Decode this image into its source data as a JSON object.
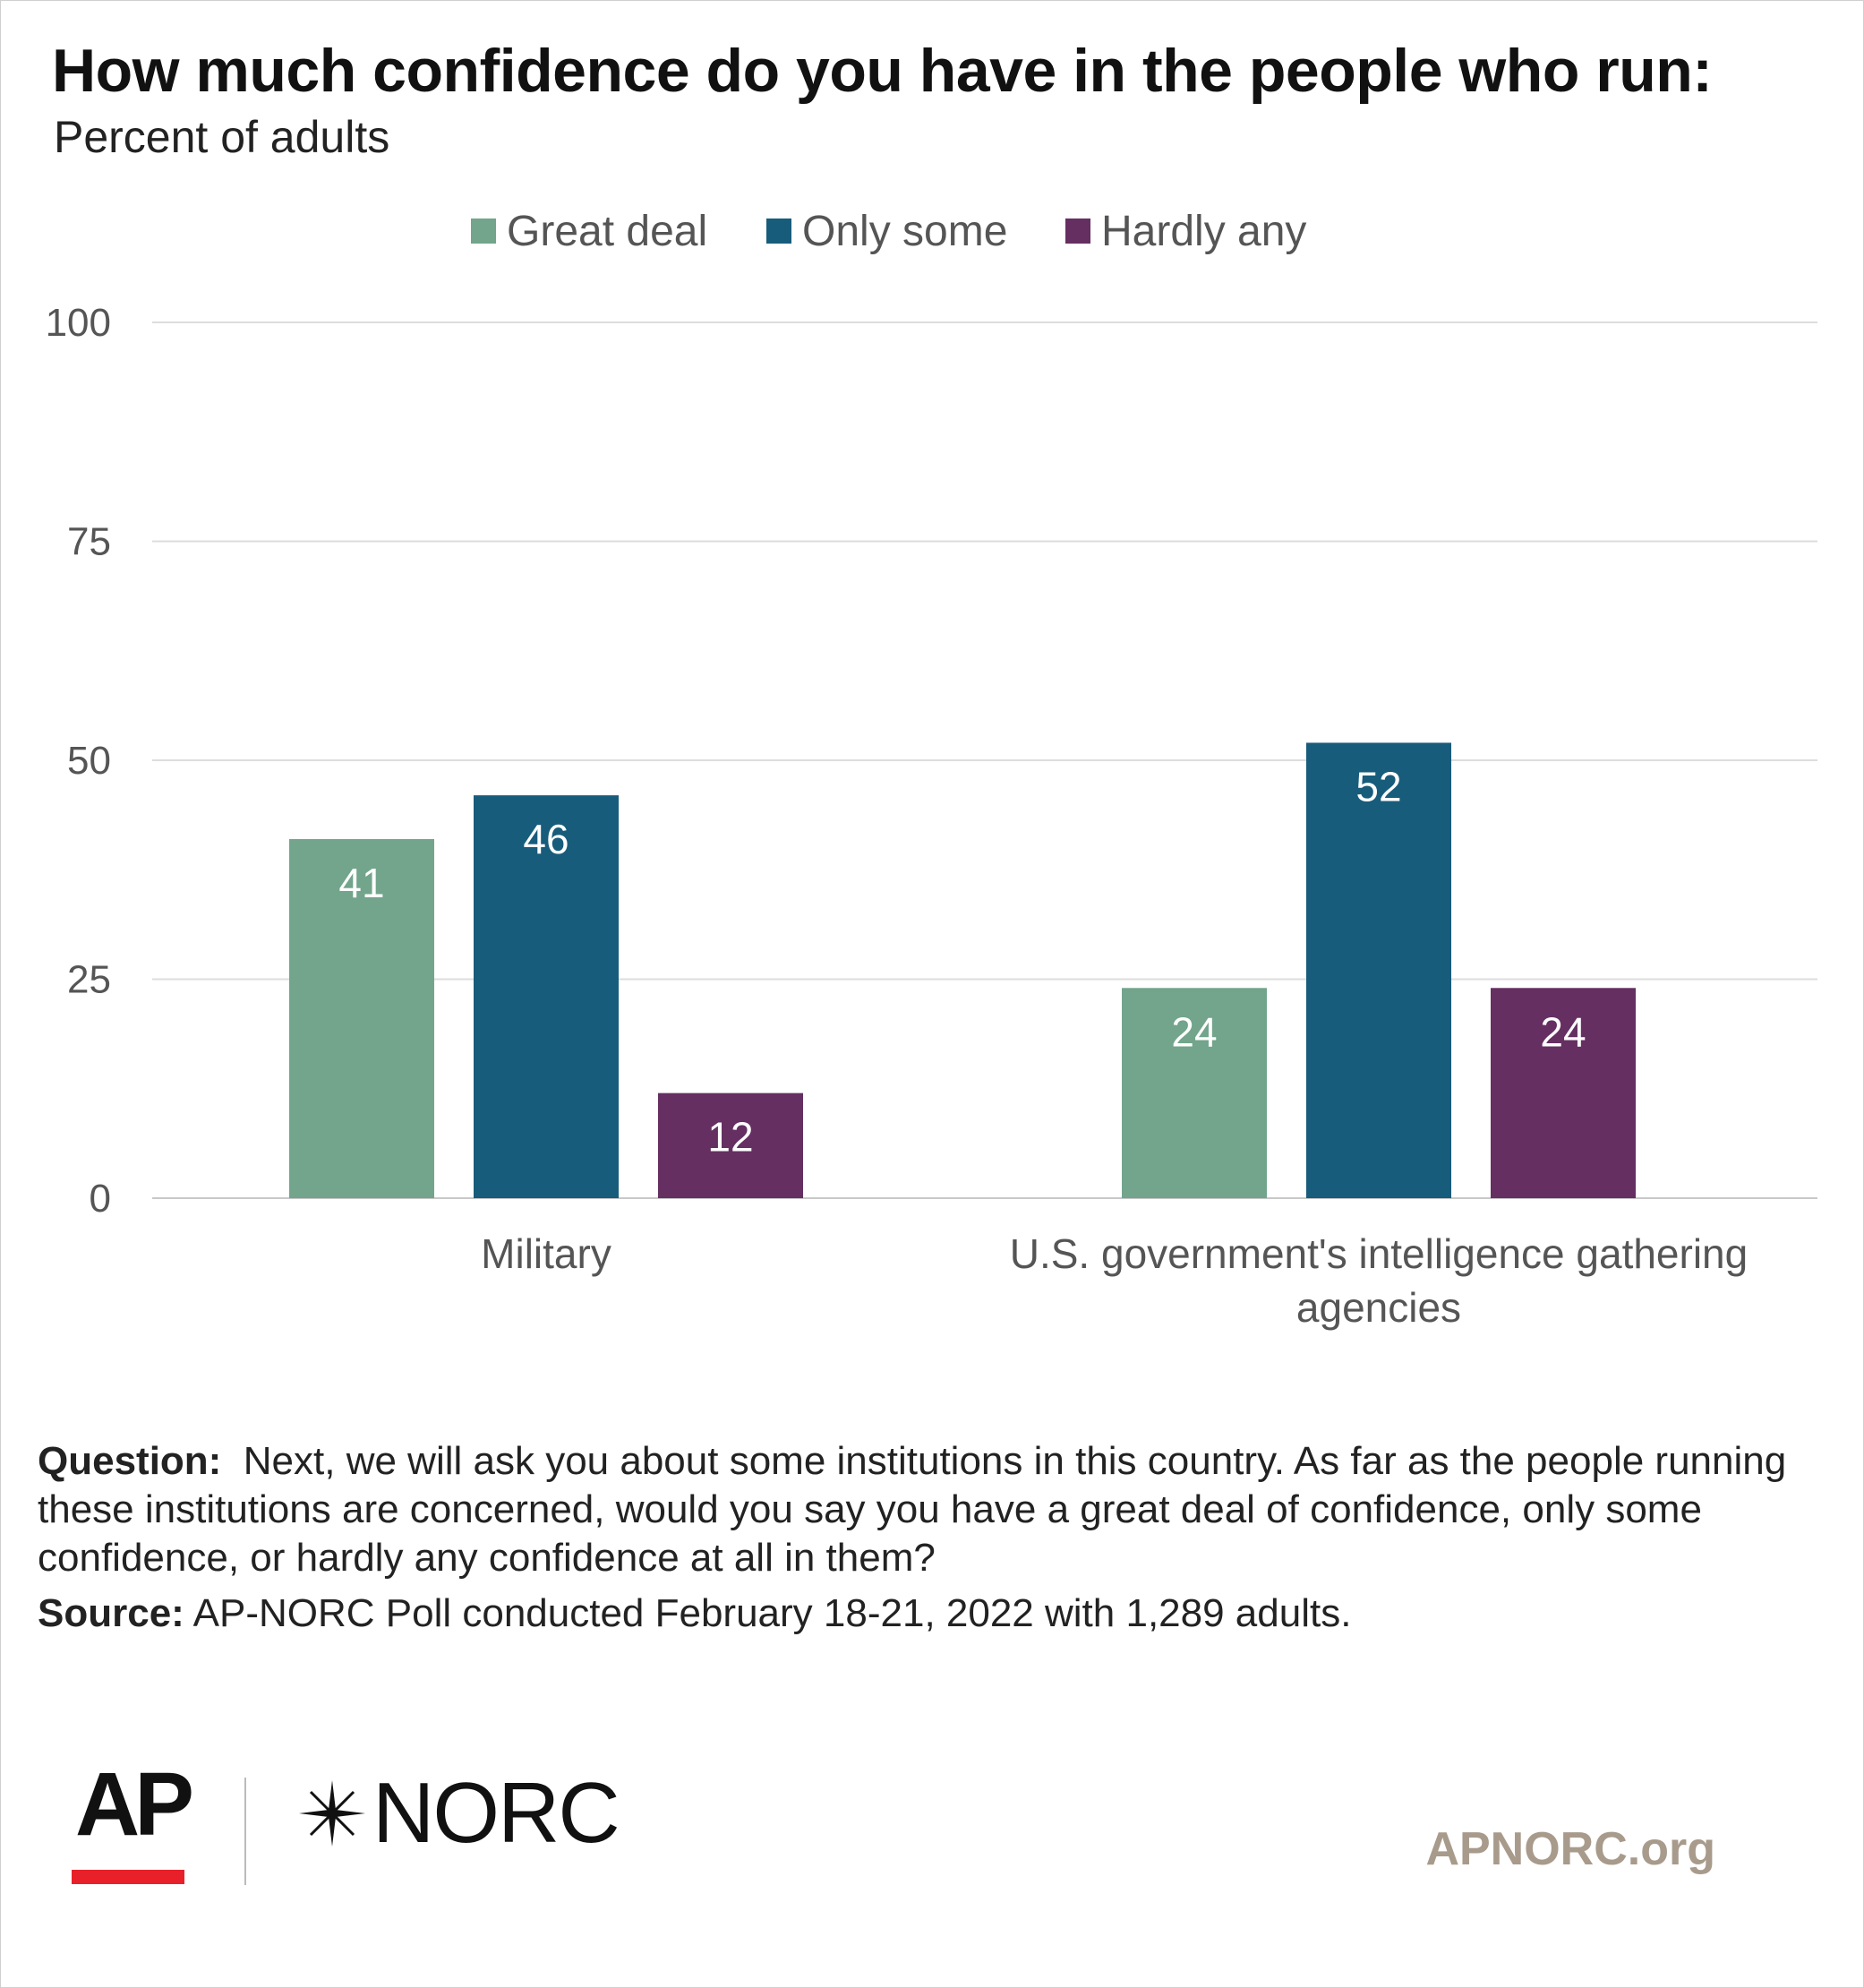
{
  "header": {
    "title": "How much confidence do you have in the people who run:",
    "subtitle": "Percent of adults"
  },
  "legend": [
    {
      "label": "Great deal",
      "color": "#72a58b"
    },
    {
      "label": "Only some",
      "color": "#185c7b"
    },
    {
      "label": "Hardly any",
      "color": "#652f62"
    }
  ],
  "chart_data": {
    "type": "bar",
    "title": "How much confidence do you have in the people who run:",
    "subtitle": "Percent of adults",
    "categories": [
      [
        "Military"
      ],
      [
        "U.S. government's intelligence gathering",
        "agencies"
      ]
    ],
    "series": [
      {
        "name": "Great deal",
        "color": "#72a58b",
        "values": [
          41,
          24
        ]
      },
      {
        "name": "Only some",
        "color": "#185c7b",
        "values": [
          46,
          52
        ]
      },
      {
        "name": "Hardly any",
        "color": "#652f62",
        "values": [
          12,
          24
        ]
      }
    ],
    "ylim": [
      0,
      100
    ],
    "yticks": [
      0,
      25,
      50,
      75,
      100
    ],
    "grid": true,
    "legend_position": "top-center",
    "data_labels": true
  },
  "footer": {
    "question_label": "Question:",
    "question_text": "Next, we will ask you about some institutions in this country. As far as the people running these institutions are concerned, would you say you have a great deal of confidence, only some confidence, or hardly any confidence at all in them?",
    "source_label": "Source:",
    "source_text": "AP-NORC Poll conducted February 18-21, 2022 with 1,289 adults.",
    "logo_ap": "AP",
    "logo_norc": "NORC",
    "site": "APNORC.org"
  }
}
